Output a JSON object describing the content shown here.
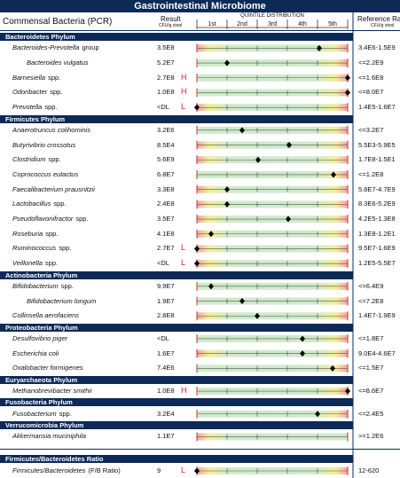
{
  "header": {
    "title": "Gastrointestinal Microbiome"
  },
  "columns": {
    "name": "Commensal Bacteria (PCR)",
    "result": "Result",
    "result_unit": "CFU/g stool",
    "distribution": "QUINTILE DISTRIBUTION",
    "quintiles": [
      "1st",
      "2nd",
      "3rd",
      "4th",
      "5th"
    ],
    "reference": "Reference Range",
    "reference_unit": "CFU/g stool"
  },
  "sections": [
    {
      "title": "Bacteroidetes Phylum",
      "rows": [
        {
          "name": "Bacteroides-Prevotella",
          "suffix": "group",
          "result": "3.5E8",
          "marker": 4.06,
          "reference": "3.4E6-1.5E9"
        },
        {
          "name": "Bacteroides vulgatus",
          "indent": true,
          "result": "5.2E7",
          "marker": 1.0,
          "reference": "<=2.2E9"
        },
        {
          "name": "Barnesiella",
          "suffix": "spp.",
          "result": "2.7E8",
          "flag": "H",
          "marker": 5.0,
          "reference": "<=1.6E8"
        },
        {
          "name": "Odoribacter",
          "suffix": "spp.",
          "result": "1.0E8",
          "flag": "H",
          "marker": 5.0,
          "reference": "<=8.0E7"
        },
        {
          "name": "Prevotella",
          "suffix": "spp.",
          "result": "<DL",
          "flag": "L",
          "marker": 0,
          "reference": "1.4E5-1.6E7"
        }
      ]
    },
    {
      "title": "Firmicutes Phylum",
      "rows": [
        {
          "name": "Anaerotruncus colihominis",
          "result": "3.2E6",
          "marker": 1.5,
          "reference": "<=3.2E7"
        },
        {
          "name": "Butyrivibrio crossotus",
          "result": "8.5E4",
          "marker": 3.06,
          "reference": "5.5E3-5.9E5"
        },
        {
          "name": "Clostridium",
          "suffix": "spp.",
          "result": "5.6E9",
          "marker": 2.03,
          "reference": "1.7E8-1.5E1"
        },
        {
          "name": "Coprococcus eutactus",
          "result": "6.8E7",
          "marker": 4.53,
          "reference": "<=1.2E8"
        },
        {
          "name": "Faecalibacterium prausnitzii",
          "result": "3.3E8",
          "marker": 1.0,
          "reference": "5.8E7-4.7E9"
        },
        {
          "name": "Lactobacillus",
          "suffix": "spp.",
          "result": "2.4E8",
          "marker": 1.0,
          "reference": "8.3E6-5.2E9"
        },
        {
          "name": "Pseudoflavonifractor",
          "suffix": "spp.",
          "result": "3.5E7",
          "marker": 3.03,
          "reference": "4.2E5-1.3E8"
        },
        {
          "name": "Roseburia",
          "suffix": "spp.",
          "result": "4.1E8",
          "marker": 0.47,
          "reference": "1.3E8-1.2E1"
        },
        {
          "name": "Ruminococcus",
          "suffix": "spp.",
          "result": "2.7E7",
          "flag": "L",
          "marker": 0,
          "reference": "9.5E7-1.6E9"
        },
        {
          "name": "Veillonella",
          "suffix": "spp.",
          "result": "<DL",
          "flag": "L",
          "marker": 0,
          "reference": "1.2E5-5.5E7"
        }
      ]
    },
    {
      "title": "Actinobacteria Phylum",
      "rows": [
        {
          "name": "Bifidobacterium",
          "suffix": "spp.",
          "result": "9.9E7",
          "marker": 0.47,
          "reference": "<=6.4E9"
        },
        {
          "name": "Bifidobacterium longum",
          "indent": true,
          "result": "1.9E7",
          "marker": 1.5,
          "reference": "<=7.2E8"
        },
        {
          "name": "Collinsella aerofaciens",
          "result": "2.8E8",
          "marker": 2.0,
          "reference": "1.4E7-1.9E9"
        }
      ]
    },
    {
      "title": "Proteobacteria Phylum",
      "rows": [
        {
          "name": "Desulfovibrio piger",
          "result": "<DL",
          "marker": 3.5,
          "reference": "<=1.8E7"
        },
        {
          "name": "Escherichia coli",
          "result": "1.6E7",
          "marker": 3.5,
          "reference": "9.0E4-4.6E7"
        },
        {
          "name": "Oxalobacter formigenes",
          "result": "7.4E6",
          "marker": 4.5,
          "reference": "<=1.5E7"
        }
      ]
    },
    {
      "title": "Euryarchaeota Phylum",
      "rows": [
        {
          "name": "Methanobrevibacter smithii",
          "result": "1.0E8",
          "flag": "H",
          "marker": 5.0,
          "reference": "<=8.6E7"
        }
      ]
    },
    {
      "title": "Fusobacteria Phylum",
      "rows": [
        {
          "name": "Fusobacterium",
          "suffix": "spp.",
          "result": "3.2E4",
          "marker": 4.0,
          "reference": "<=2.4E5"
        }
      ]
    },
    {
      "title": "Verrucomicrobia Phylum",
      "rows": [
        {
          "name": "Akkermansia muciniphila",
          "result": "1.1E7",
          "reference": ">=1.2E6"
        }
      ]
    }
  ],
  "ratio": {
    "title": "Firmicutes/Bacteroidetes Ratio",
    "rows": [
      {
        "name": "Firmicutes/Bacteroidetes",
        "suffix": "(F/B Ratio)",
        "result": "9",
        "flag": "L",
        "marker": 0,
        "reference": "12-620"
      }
    ]
  }
}
